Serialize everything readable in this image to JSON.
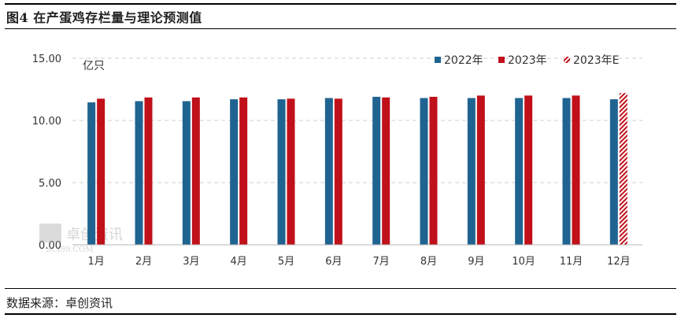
{
  "figure": {
    "title": "图4 在产蛋鸡存栏量与理论预测值",
    "source": "数据来源：卓创资讯"
  },
  "watermark": {
    "text": "卓创资讯",
    "subtext": "SCI99.COM"
  },
  "colors": {
    "series_2022": "#1f6391",
    "series_2023": "#c0101a",
    "series_2023e": "#c0101a",
    "grid": "#cfcfcf"
  },
  "chart_data": {
    "type": "bar",
    "title": "图4 在产蛋鸡存栏量与理论预测值",
    "ylabel": "亿只",
    "ylim": [
      0,
      15
    ],
    "yticks": [
      "0.00",
      "5.00",
      "10.00",
      "15.00"
    ],
    "ytick_values": [
      0,
      5,
      10,
      15
    ],
    "grid": true,
    "legend_position": "top-right",
    "categories": [
      "1月",
      "2月",
      "3月",
      "4月",
      "5月",
      "6月",
      "7月",
      "8月",
      "9月",
      "10月",
      "11月",
      "12月"
    ],
    "series": [
      {
        "name": "2022年",
        "pattern": "solid",
        "values": [
          11.45,
          11.55,
          11.55,
          11.7,
          11.7,
          11.8,
          11.9,
          11.8,
          11.8,
          11.8,
          11.8,
          11.7
        ]
      },
      {
        "name": "2023年",
        "pattern": "solid",
        "values": [
          11.75,
          11.85,
          11.85,
          11.85,
          11.75,
          11.75,
          11.85,
          11.9,
          12.0,
          12.0,
          12.0,
          null
        ]
      },
      {
        "name": "2023年E",
        "pattern": "hatched",
        "values": [
          null,
          null,
          null,
          null,
          null,
          null,
          null,
          null,
          null,
          null,
          null,
          12.2
        ]
      }
    ]
  }
}
